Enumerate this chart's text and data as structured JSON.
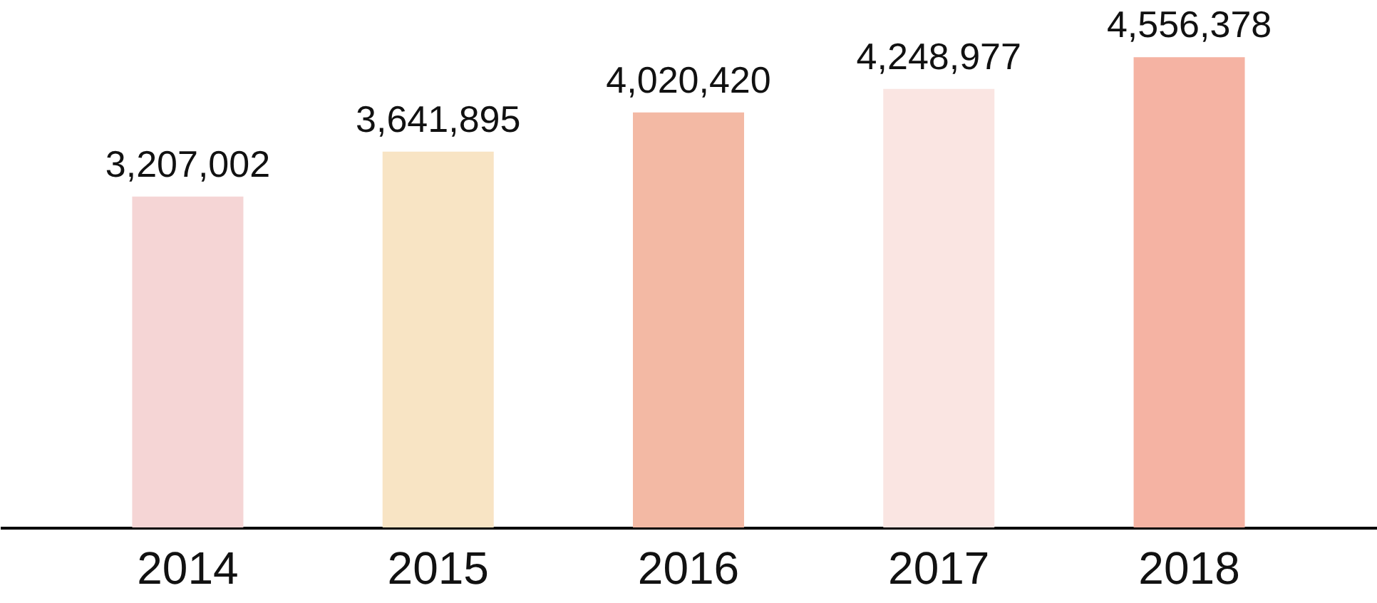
{
  "chart_data": {
    "type": "bar",
    "categories": [
      "2014",
      "2015",
      "2016",
      "2017",
      "2018"
    ],
    "values": [
      3207002,
      3641895,
      4020420,
      4248977,
      4556378
    ],
    "colors": [
      "#f5d5d5",
      "#f8e4c4",
      "#f3b9a4",
      "#fae5e2",
      "#f5b3a3"
    ],
    "value_labels": [
      "3,207,002",
      "3,641,895",
      "4,020,420",
      "4,248,977",
      "4,556,378"
    ]
  }
}
